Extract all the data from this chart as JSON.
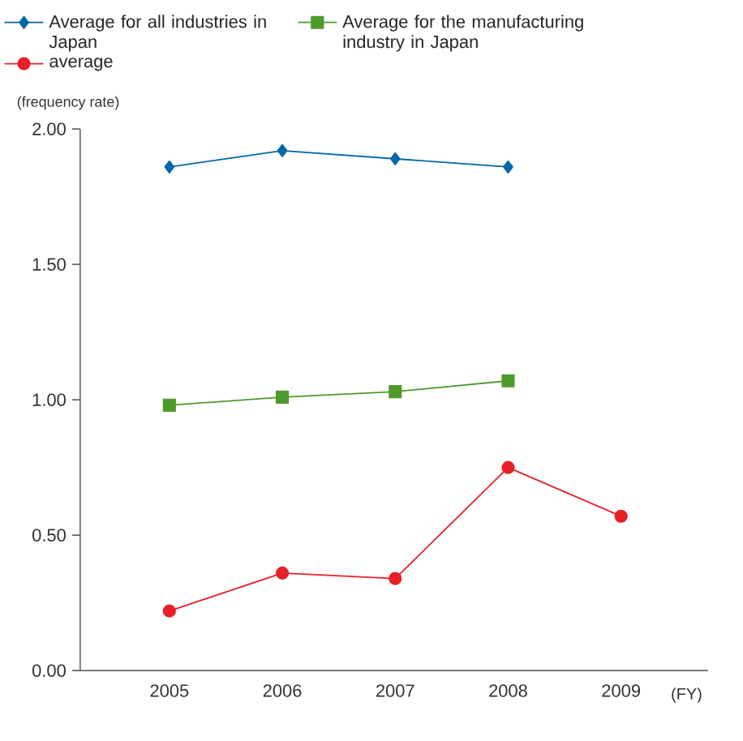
{
  "chart_data": {
    "type": "line",
    "ylabel": "(frequency rate)",
    "xlabel": "(FY)",
    "categories": [
      "2005",
      "2006",
      "2007",
      "2008",
      "2009"
    ],
    "series": [
      {
        "name": "Average for all industries in Japan",
        "color": "#0068a8",
        "marker": "diamond",
        "values": [
          1.86,
          1.92,
          1.89,
          1.86,
          null
        ]
      },
      {
        "name": "Average for the manufacturing industry in Japan",
        "color": "#4f9a2c",
        "marker": "square",
        "values": [
          0.98,
          1.01,
          1.03,
          1.07,
          null
        ]
      },
      {
        "name": "average",
        "color": "#e8202a",
        "marker": "circle",
        "values": [
          0.22,
          0.36,
          0.34,
          0.75,
          0.57
        ]
      }
    ],
    "ylim": [
      0,
      2
    ],
    "yticks": [
      {
        "value": 0,
        "label": "0.00"
      },
      {
        "value": 0.5,
        "label": "0.50"
      },
      {
        "value": 1,
        "label": "1.00"
      },
      {
        "value": 1.5,
        "label": "1.50"
      },
      {
        "value": 2,
        "label": "2.00"
      }
    ],
    "legend": "top",
    "grid": false,
    "line_style": "solid"
  }
}
